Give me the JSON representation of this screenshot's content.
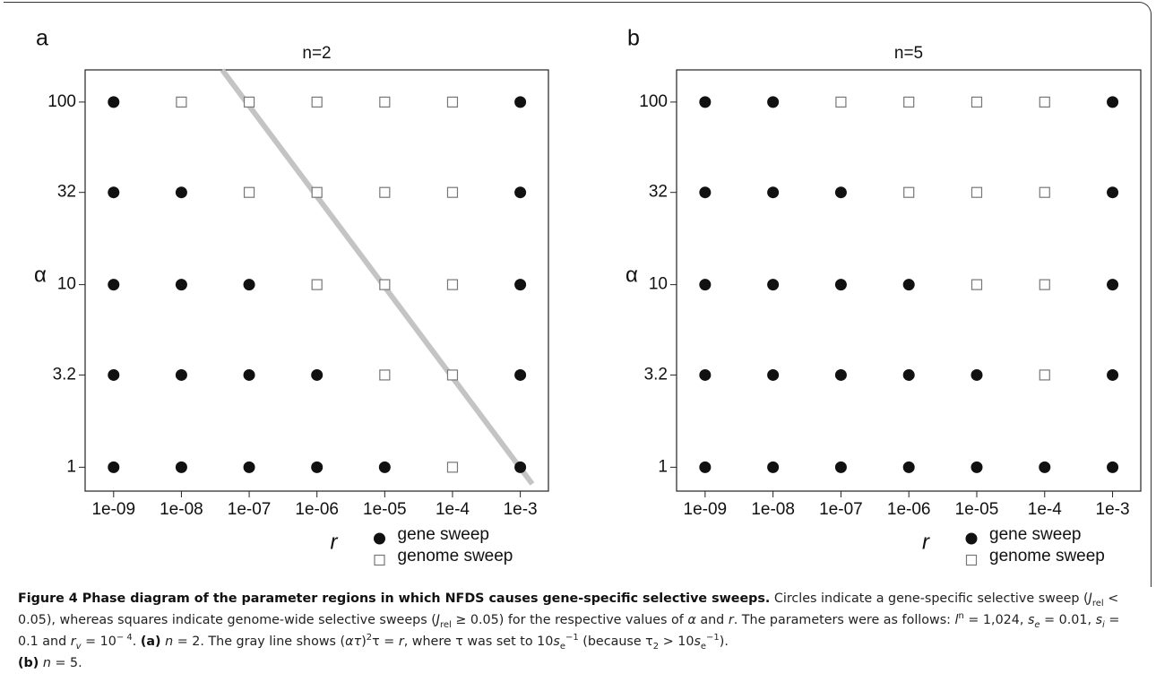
{
  "chart_data": [
    {
      "type": "scatter",
      "panel": "a",
      "title": "n=2",
      "xlabel": "r",
      "ylabel": "α",
      "log_x": true,
      "log_y": true,
      "xlim": [
        3.8e-10,
        0.0026
      ],
      "ylim": [
        0.74,
        150
      ],
      "xticks": [
        {
          "value": 1e-09,
          "label": "1e-09"
        },
        {
          "value": 1e-08,
          "label": "1e-08"
        },
        {
          "value": 1e-07,
          "label": "1e-07"
        },
        {
          "value": 1e-06,
          "label": "1e-06"
        },
        {
          "value": 1e-05,
          "label": "1e-05"
        },
        {
          "value": 0.0001,
          "label": "1e-4"
        },
        {
          "value": 0.001,
          "label": "1e-3"
        }
      ],
      "yticks": [
        1,
        3.2,
        10,
        32,
        100
      ],
      "series": [
        {
          "name": "gene sweep",
          "marker": "circle",
          "color": "#111111",
          "x": [
            1e-09,
            0.001,
            1e-09,
            1e-08,
            0.001,
            1e-09,
            1e-08,
            1e-07,
            0.001,
            1e-09,
            1e-08,
            1e-07,
            1e-06,
            0.001,
            1e-09,
            1e-08,
            1e-07,
            1e-06,
            1e-05,
            0.001
          ],
          "values": [
            100,
            100,
            32,
            32,
            32,
            10,
            10,
            10,
            10,
            3.2,
            3.2,
            3.2,
            3.2,
            3.2,
            1,
            1,
            1,
            1,
            1,
            1
          ]
        },
        {
          "name": "genome sweep",
          "marker": "square",
          "color": "#777777",
          "x": [
            1e-08,
            1e-07,
            1e-06,
            1e-05,
            0.0001,
            1e-07,
            1e-06,
            1e-05,
            0.0001,
            1e-06,
            1e-05,
            0.0001,
            1e-05,
            0.0001,
            0.0001
          ],
          "values": [
            100,
            100,
            100,
            100,
            100,
            32,
            32,
            32,
            32,
            10,
            10,
            10,
            3.2,
            3.2,
            1
          ]
        }
      ],
      "reference_line": {
        "color": "#c4c4c4",
        "x": [
          4e-08,
          0.0015
        ],
        "values": [
          150,
          0.81
        ]
      }
    },
    {
      "type": "scatter",
      "panel": "b",
      "title": "n=5",
      "xlabel": "r",
      "ylabel": "α",
      "log_x": true,
      "log_y": true,
      "xlim": [
        3.8e-10,
        0.0026
      ],
      "ylim": [
        0.74,
        150
      ],
      "xticks": [
        {
          "value": 1e-09,
          "label": "1e-09"
        },
        {
          "value": 1e-08,
          "label": "1e-08"
        },
        {
          "value": 1e-07,
          "label": "1e-07"
        },
        {
          "value": 1e-06,
          "label": "1e-06"
        },
        {
          "value": 1e-05,
          "label": "1e-05"
        },
        {
          "value": 0.0001,
          "label": "1e-4"
        },
        {
          "value": 0.001,
          "label": "1e-3"
        }
      ],
      "yticks": [
        1,
        3.2,
        10,
        32,
        100
      ],
      "series": [
        {
          "name": "gene sweep",
          "marker": "circle",
          "color": "#111111",
          "x": [
            1e-09,
            1e-08,
            0.001,
            1e-09,
            1e-08,
            1e-07,
            0.001,
            1e-09,
            1e-08,
            1e-07,
            1e-06,
            0.001,
            1e-09,
            1e-08,
            1e-07,
            1e-06,
            1e-05,
            0.001,
            1e-09,
            1e-08,
            1e-07,
            1e-06,
            1e-05,
            0.0001,
            0.001
          ],
          "values": [
            100,
            100,
            100,
            32,
            32,
            32,
            32,
            10,
            10,
            10,
            10,
            10,
            3.2,
            3.2,
            3.2,
            3.2,
            3.2,
            3.2,
            1,
            1,
            1,
            1,
            1,
            1,
            1
          ]
        },
        {
          "name": "genome sweep",
          "marker": "square",
          "color": "#777777",
          "x": [
            1e-07,
            1e-06,
            1e-05,
            0.0001,
            1e-06,
            1e-05,
            0.0001,
            1e-05,
            0.0001,
            0.0001
          ],
          "values": [
            100,
            100,
            100,
            100,
            32,
            32,
            32,
            10,
            10,
            3.2
          ]
        }
      ]
    }
  ],
  "caption": {
    "parts": [
      "Figure 4 Phase diagram of the parameter regions in which NFDS causes gene-specific selective sweeps.",
      " Circles indicate a gene-specific selective sweep (",
      "J",
      "rel",
      " < 0.05), whereas squares indicate genome-wide selective sweeps (",
      "J",
      "rel",
      " ≥ 0.05) for the respective values of ",
      "α",
      " and ",
      "r",
      ". The parameters were as follows: ",
      "l",
      "n",
      " = 1,024, ",
      "s",
      "e",
      " = 0.01, ",
      "s",
      "i",
      " = 0.1 and ",
      "r",
      "v",
      " = 10",
      "− 4",
      ". ",
      "(a)",
      "n",
      " = 2. The gray line shows (",
      "ατ",
      ")",
      "2",
      "τ = ",
      "r",
      ", where τ was set to 10",
      "s",
      "e",
      "−1",
      " (because τ",
      "2",
      " > 10",
      "s",
      "e",
      "−1",
      ").",
      "(b)",
      "n",
      " = 5."
    ]
  }
}
